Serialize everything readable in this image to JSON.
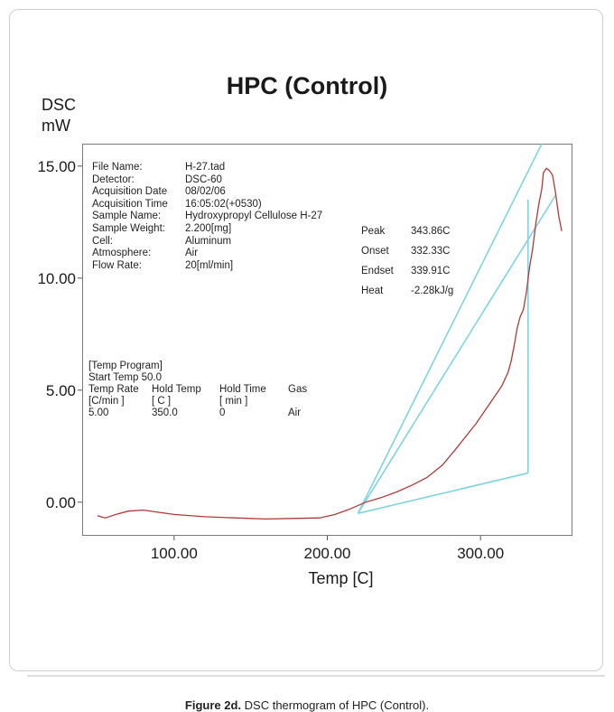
{
  "chart_data": {
    "type": "line",
    "title": "HPC (Control)",
    "ylabel_line1": "DSC",
    "ylabel_line2": "mW",
    "xlabel": "Temp  [C]",
    "xlim": [
      40,
      360
    ],
    "ylim": [
      -1.5,
      16.0
    ],
    "x_ticks": [
      {
        "value": 100,
        "label": "100.00"
      },
      {
        "value": 200,
        "label": "200.00"
      },
      {
        "value": 300,
        "label": "300.00"
      }
    ],
    "y_ticks": [
      {
        "value": 0,
        "label": "0.00"
      },
      {
        "value": 5,
        "label": "5.00"
      },
      {
        "value": 10,
        "label": "10.00"
      },
      {
        "value": 15,
        "label": "15.00"
      }
    ],
    "grid": false,
    "series": [
      {
        "color": "#b03a3a",
        "points": [
          [
            50,
            -0.6
          ],
          [
            55,
            -0.7
          ],
          [
            62,
            -0.55
          ],
          [
            70,
            -0.4
          ],
          [
            80,
            -0.35
          ],
          [
            90,
            -0.45
          ],
          [
            100,
            -0.55
          ],
          [
            120,
            -0.65
          ],
          [
            140,
            -0.7
          ],
          [
            160,
            -0.75
          ],
          [
            180,
            -0.72
          ],
          [
            195,
            -0.7
          ],
          [
            205,
            -0.55
          ],
          [
            215,
            -0.3
          ],
          [
            225,
            0.0
          ],
          [
            235,
            0.2
          ],
          [
            245,
            0.45
          ],
          [
            255,
            0.75
          ],
          [
            265,
            1.1
          ],
          [
            275,
            1.65
          ],
          [
            283,
            2.3
          ],
          [
            290,
            2.9
          ],
          [
            297,
            3.5
          ],
          [
            304,
            4.2
          ],
          [
            310,
            4.8
          ],
          [
            314,
            5.2
          ],
          [
            318,
            5.8
          ],
          [
            320,
            6.3
          ],
          [
            322,
            7.0
          ],
          [
            324,
            7.8
          ],
          [
            326,
            8.3
          ],
          [
            328,
            8.6
          ],
          [
            330,
            9.4
          ],
          [
            332,
            10.5
          ],
          [
            334,
            11.3
          ],
          [
            336,
            12.4
          ],
          [
            338,
            13.3
          ],
          [
            340,
            14.0
          ],
          [
            341,
            14.7
          ],
          [
            343,
            14.9
          ],
          [
            345,
            14.8
          ],
          [
            347,
            14.6
          ],
          [
            349,
            13.8
          ],
          [
            351,
            12.8
          ],
          [
            353,
            12.1
          ]
        ]
      }
    ],
    "baseline_color": "#7fd3e3",
    "analysis_lines": [
      {
        "x": [
          220,
          331
        ],
        "y": [
          -0.5,
          1.3
        ]
      },
      {
        "x": [
          331,
          331
        ],
        "y": [
          1.3,
          13.5
        ]
      },
      {
        "x": [
          220,
          349
        ],
        "y": [
          -0.5,
          13.7
        ]
      },
      {
        "x": [
          220,
          340
        ],
        "y": [
          -0.5,
          16.0
        ]
      }
    ]
  },
  "info": {
    "rows": [
      {
        "k": "File Name:",
        "v": "H-27.tad"
      },
      {
        "k": "Detector:",
        "v": "DSC-60"
      },
      {
        "k": "Acquisition Date",
        "v": "08/02/06"
      },
      {
        "k": "Acquisition Time",
        "v": "16:05:02(+0530)"
      },
      {
        "k": "Sample Name:",
        "v": "Hydroxypropyl Cellulose H-27"
      },
      {
        "k": "Sample Weight:",
        "v": "2.200[mg]"
      },
      {
        "k": "Cell:",
        "v": "Aluminum"
      },
      {
        "k": "Atmosphere:",
        "v": "Air"
      },
      {
        "k": "Flow Rate:",
        "v": "20[ml/min]"
      }
    ]
  },
  "peak": {
    "rows": [
      {
        "k": "Peak",
        "v": "343.86C"
      },
      {
        "k": "Onset",
        "v": "332.33C"
      },
      {
        "k": "Endset",
        "v": "339.91C"
      },
      {
        "k": "Heat",
        "v": "-2.28kJ/g"
      }
    ]
  },
  "program": {
    "heading": "[Temp Program]",
    "start": "Start Temp  50.0",
    "header1": [
      "Temp Rate",
      "Hold Temp",
      "Hold Time",
      "Gas"
    ],
    "header2": [
      "[C/min ]",
      "[  C  ]",
      "[  min  ]",
      ""
    ],
    "row": [
      "5.00",
      "350.0",
      "0",
      "Air"
    ]
  },
  "caption": {
    "bold": "Figure 2d.",
    "text": " DSC thermogram of HPC (Control)."
  }
}
